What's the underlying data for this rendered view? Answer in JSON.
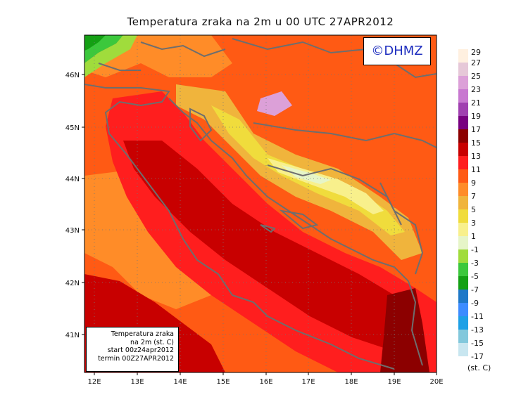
{
  "title": "Temperatura zraka na 2m u 00 UTC 27APR2012",
  "copyright": "©DHMZ",
  "info_box": {
    "line1": "Temperatura zraka",
    "line2": "na 2m (st. C)",
    "line3": "start 00z24apr2012",
    "line4": "termin 00Z27APR2012"
  },
  "axes": {
    "lon_labels": [
      "12E",
      "13E",
      "14E",
      "15E",
      "16E",
      "17E",
      "18E",
      "19E",
      "20E"
    ],
    "lat_labels": [
      "46N",
      "45N",
      "44N",
      "43N",
      "42N",
      "41N"
    ]
  },
  "legend": {
    "unit": "(st. C)",
    "labels": [
      "29",
      "27",
      "25",
      "23",
      "21",
      "19",
      "17",
      "15",
      "13",
      "11",
      "9",
      "7",
      "5",
      "3",
      "1",
      "-1",
      "-3",
      "-5",
      "-7",
      "-9",
      "-11",
      "-13",
      "-15",
      "-17"
    ],
    "colors": [
      "#fff0e0",
      "#e6c8d8",
      "#dca0d8",
      "#c878d0",
      "#a040b0",
      "#780080",
      "#8c0000",
      "#c80000",
      "#ff1e1e",
      "#ff5a14",
      "#ff8c28",
      "#f0b43c",
      "#f0dc3c",
      "#f8f08c",
      "#e6f5c8",
      "#a0dc3c",
      "#3cc83c",
      "#14a014",
      "#1e78c8",
      "#3c8cff",
      "#1ea0e6",
      "#82c8dc",
      "#c8e6f0",
      "#ffffff"
    ]
  }
}
